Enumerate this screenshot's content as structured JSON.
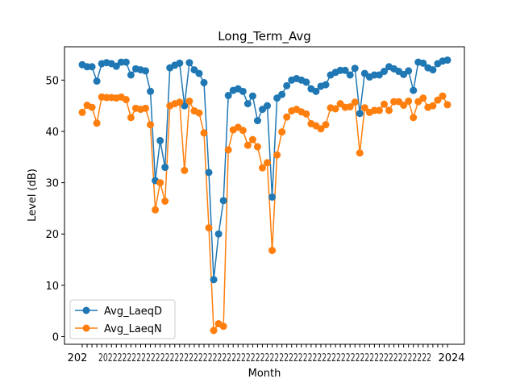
{
  "chart_data": {
    "type": "line",
    "title": "Long_Term_Avg",
    "xlabel": "Month",
    "ylabel": "Level (dB)",
    "ylim": [
      -1.5,
      56.5
    ],
    "yticks": [
      0,
      10,
      20,
      30,
      40,
      50
    ],
    "grid": false,
    "legend_position": "lower-left",
    "x_tick_labels_first": "202",
    "x_tick_labels_last": "2024",
    "series": [
      {
        "name": "Avg_LaeqD",
        "color": "#1f77b4",
        "values": [
          53.0,
          52.6,
          52.6,
          49.8,
          53.2,
          53.4,
          53.2,
          52.7,
          53.5,
          53.5,
          51.0,
          52.2,
          52.0,
          51.8,
          47.8,
          30.4,
          38.2,
          33.0,
          52.4,
          52.9,
          53.3,
          45.0,
          53.4,
          52.0,
          51.3,
          49.5,
          32.0,
          11.1,
          20.0,
          26.5,
          47.0,
          48.0,
          48.3,
          47.8,
          45.4,
          46.9,
          42.1,
          44.3,
          45.0,
          27.2,
          46.5,
          47.2,
          48.9,
          50.0,
          50.3,
          50.0,
          49.6,
          48.3,
          47.8,
          48.8,
          49.1,
          51.0,
          51.5,
          51.9,
          51.9,
          51.0,
          52.3,
          43.5,
          51.3,
          50.6,
          51.0,
          51.0,
          51.7,
          52.6,
          52.2,
          51.7,
          51.1,
          51.8,
          48.0,
          53.5,
          53.3,
          52.4,
          52.0,
          53.2,
          53.7,
          53.9
        ]
      },
      {
        "name": "Avg_LaeqN",
        "color": "#ff7f0e",
        "values": [
          43.7,
          45.1,
          44.7,
          41.6,
          46.7,
          46.6,
          46.6,
          46.5,
          46.7,
          46.2,
          42.7,
          44.5,
          44.3,
          44.5,
          41.3,
          24.7,
          30.0,
          26.4,
          45.0,
          45.4,
          45.7,
          32.4,
          45.9,
          44.0,
          43.6,
          39.7,
          21.2,
          1.2,
          2.5,
          2.0,
          36.4,
          40.3,
          40.8,
          40.2,
          37.3,
          38.4,
          37.0,
          32.9,
          33.9,
          16.8,
          35.4,
          39.9,
          42.8,
          44.0,
          44.3,
          43.8,
          43.4,
          41.5,
          41.1,
          40.5,
          41.3,
          44.6,
          44.4,
          45.4,
          44.7,
          44.8,
          45.7,
          35.8,
          44.6,
          43.7,
          44.1,
          44.1,
          45.3,
          44.1,
          45.8,
          45.8,
          45.1,
          45.9,
          42.7,
          45.8,
          46.5,
          44.7,
          45.0,
          46.1,
          46.9,
          45.2
        ]
      }
    ]
  }
}
